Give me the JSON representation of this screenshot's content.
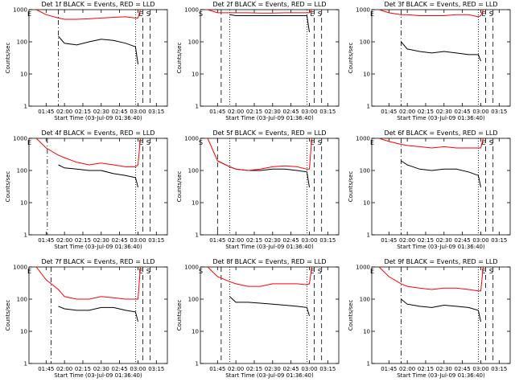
{
  "chart_data": [
    {
      "type": "line",
      "title": "Det 1f BLACK = Events, RED = LLD",
      "ylabel": "Counts/sec",
      "xlabel": "Start Time (03-Jul-09 01:36:40)",
      "log_scale": true,
      "x": [
        "01:37",
        "01:45",
        "01:55",
        "02:00",
        "02:10",
        "02:20",
        "02:30",
        "02:40",
        "02:50",
        "02:58",
        "03:00",
        "03:02"
      ],
      "series": [
        {
          "color": "#000000",
          "values": [
            null,
            null,
            150,
            90,
            80,
            100,
            120,
            110,
            90,
            70,
            20,
            null
          ]
        },
        {
          "color": "#ff0000",
          "values": [
            1000,
            700,
            550,
            500,
            500,
            520,
            550,
            580,
            600,
            550,
            550,
            1000
          ]
        }
      ],
      "xlim": [
        "01:31",
        "03:24"
      ],
      "xticks": [
        "01:45",
        "02:00",
        "02:15",
        "02:30",
        "02:45",
        "03:00",
        "03:15"
      ],
      "ylim": [
        1,
        1000
      ],
      "yticks": [
        1,
        10,
        100,
        1000
      ],
      "markers": [
        {
          "x": "01:33",
          "style": "none",
          "label": "E"
        },
        {
          "x": "01:55",
          "style": "dashdot"
        },
        {
          "x": "02:58",
          "style": "dotted"
        },
        {
          "x": "03:04",
          "style": "dashed",
          "label": "E"
        },
        {
          "x": "03:10",
          "style": "dashed",
          "label": "S"
        }
      ]
    },
    {
      "type": "line",
      "title": "Det 2f BLACK = Events, RED = LLD",
      "ylabel": "Counts/sec",
      "xlabel": "Start Time (03-Jul-09 01:36:40)",
      "log_scale": true,
      "x": [
        "01:37",
        "01:45",
        "01:55",
        "02:00",
        "02:10",
        "02:20",
        "02:30",
        "02:40",
        "02:50",
        "02:58",
        "03:00",
        "03:02"
      ],
      "series": [
        {
          "color": "#000000",
          "values": [
            null,
            null,
            700,
            650,
            650,
            650,
            650,
            650,
            650,
            650,
            200,
            null
          ]
        },
        {
          "color": "#ff0000",
          "values": [
            1000,
            800,
            800,
            800,
            800,
            780,
            780,
            800,
            800,
            800,
            800,
            1000
          ]
        }
      ],
      "xlim": [
        "01:31",
        "03:24"
      ],
      "xticks": [
        "01:45",
        "02:00",
        "02:15",
        "02:30",
        "02:45",
        "03:00",
        "03:15"
      ],
      "ylim": [
        1,
        1000
      ],
      "yticks": [
        1,
        10,
        100,
        1000
      ],
      "markers": [
        {
          "x": "01:33",
          "style": "none",
          "label": "S"
        },
        {
          "x": "01:48",
          "style": "dashed"
        },
        {
          "x": "01:55",
          "style": "dotted"
        },
        {
          "x": "02:58",
          "style": "dotted"
        },
        {
          "x": "03:04",
          "style": "dashed",
          "label": "E"
        },
        {
          "x": "03:10",
          "style": "dashed",
          "label": "S"
        }
      ]
    },
    {
      "type": "line",
      "title": "Det 3f BLACK = Events, RED = LLD",
      "ylabel": "Counts/sec",
      "xlabel": "Start Time (03-Jul-09 01:36:40)",
      "log_scale": true,
      "x": [
        "01:37",
        "01:45",
        "01:55",
        "02:00",
        "02:10",
        "02:20",
        "02:30",
        "02:40",
        "02:50",
        "02:58",
        "03:00",
        "03:02"
      ],
      "series": [
        {
          "color": "#000000",
          "values": [
            null,
            null,
            100,
            60,
            50,
            45,
            50,
            45,
            40,
            40,
            25,
            null
          ]
        },
        {
          "color": "#ff0000",
          "values": [
            1000,
            800,
            700,
            700,
            650,
            650,
            650,
            700,
            700,
            600,
            650,
            1000
          ]
        }
      ],
      "xlim": [
        "01:31",
        "03:24"
      ],
      "xticks": [
        "01:45",
        "02:00",
        "02:15",
        "02:30",
        "02:45",
        "03:00",
        "03:15"
      ],
      "ylim": [
        1,
        1000
      ],
      "yticks": [
        1,
        10,
        100,
        1000
      ],
      "markers": [
        {
          "x": "01:33",
          "style": "none",
          "label": "E"
        },
        {
          "x": "01:55",
          "style": "dashdot"
        },
        {
          "x": "02:58",
          "style": "dotted"
        },
        {
          "x": "03:04",
          "style": "dashed",
          "label": "E"
        },
        {
          "x": "03:10",
          "style": "dashed",
          "label": "S"
        }
      ]
    },
    {
      "type": "line",
      "title": "Det 4f BLACK = Events, RED = LLD",
      "ylabel": "Counts/sec",
      "xlabel": "Start Time (03-Jul-09 01:36:40)",
      "log_scale": true,
      "x": [
        "01:37",
        "01:45",
        "01:55",
        "02:00",
        "02:10",
        "02:20",
        "02:30",
        "02:40",
        "02:50",
        "02:58",
        "03:00",
        "03:02"
      ],
      "series": [
        {
          "color": "#000000",
          "values": [
            null,
            null,
            150,
            120,
            110,
            100,
            100,
            80,
            70,
            60,
            30,
            null
          ]
        },
        {
          "color": "#ff0000",
          "values": [
            1000,
            500,
            300,
            250,
            180,
            150,
            170,
            150,
            130,
            130,
            150,
            1000
          ]
        }
      ],
      "xlim": [
        "01:31",
        "03:24"
      ],
      "xticks": [
        "01:45",
        "02:00",
        "02:15",
        "02:30",
        "02:45",
        "03:00",
        "03:15"
      ],
      "ylim": [
        1,
        1000
      ],
      "yticks": [
        1,
        10,
        100,
        1000
      ],
      "markers": [
        {
          "x": "01:33",
          "style": "none",
          "label": "E"
        },
        {
          "x": "01:46",
          "style": "dashdot"
        },
        {
          "x": "02:58",
          "style": "dotted"
        },
        {
          "x": "03:04",
          "style": "dashed",
          "label": "E"
        },
        {
          "x": "03:10",
          "style": "dashed",
          "label": "S"
        }
      ]
    },
    {
      "type": "line",
      "title": "Det 5f BLACK = Events, RED = LLD",
      "ylabel": "Counts/sec",
      "xlabel": "Start Time (03-Jul-09 01:36:40)",
      "log_scale": true,
      "x": [
        "01:37",
        "01:45",
        "01:55",
        "02:00",
        "02:10",
        "02:20",
        "02:30",
        "02:40",
        "02:50",
        "02:58",
        "03:00",
        "03:02"
      ],
      "series": [
        {
          "color": "#000000",
          "values": [
            null,
            200,
            130,
            110,
            100,
            100,
            110,
            110,
            100,
            90,
            30,
            null
          ]
        },
        {
          "color": "#ff0000",
          "values": [
            1000,
            200,
            130,
            110,
            100,
            110,
            130,
            140,
            130,
            110,
            110,
            1000
          ]
        }
      ],
      "xlim": [
        "01:31",
        "03:24"
      ],
      "xticks": [
        "01:45",
        "02:00",
        "02:15",
        "02:30",
        "02:45",
        "03:00",
        "03:15"
      ],
      "ylim": [
        1,
        1000
      ],
      "yticks": [
        1,
        10,
        100,
        1000
      ],
      "markers": [
        {
          "x": "01:33",
          "style": "none",
          "label": "S"
        },
        {
          "x": "01:45",
          "style": "dashed"
        },
        {
          "x": "01:55",
          "style": "dotted"
        },
        {
          "x": "02:58",
          "style": "dotted"
        },
        {
          "x": "03:04",
          "style": "dashed",
          "label": "E"
        },
        {
          "x": "03:10",
          "style": "dashed",
          "label": "S"
        }
      ]
    },
    {
      "type": "line",
      "title": "Det 6f BLACK = Events, RED = LLD",
      "ylabel": "Counts/sec",
      "xlabel": "Start Time (03-Jul-09 01:36:40)",
      "log_scale": true,
      "x": [
        "01:37",
        "01:45",
        "01:55",
        "02:00",
        "02:10",
        "02:20",
        "02:30",
        "02:40",
        "02:50",
        "02:58",
        "03:00",
        "03:02"
      ],
      "series": [
        {
          "color": "#000000",
          "values": [
            null,
            null,
            200,
            150,
            110,
            100,
            110,
            110,
            90,
            70,
            30,
            null
          ]
        },
        {
          "color": "#ff0000",
          "values": [
            1000,
            800,
            650,
            600,
            550,
            500,
            550,
            500,
            500,
            500,
            500,
            1000
          ]
        }
      ],
      "xlim": [
        "01:31",
        "03:24"
      ],
      "xticks": [
        "01:45",
        "02:00",
        "02:15",
        "02:30",
        "02:45",
        "03:00",
        "03:15"
      ],
      "ylim": [
        1,
        1000
      ],
      "yticks": [
        1,
        10,
        100,
        1000
      ],
      "markers": [
        {
          "x": "01:33",
          "style": "none",
          "label": "E"
        },
        {
          "x": "01:55",
          "style": "dashdot"
        },
        {
          "x": "02:58",
          "style": "dotted"
        },
        {
          "x": "03:04",
          "style": "dashed",
          "label": "E"
        },
        {
          "x": "03:10",
          "style": "dashed",
          "label": "S"
        }
      ]
    },
    {
      "type": "line",
      "title": "Det 7f BLACK = Events, RED = LLD",
      "ylabel": "Counts/sec",
      "xlabel": "Start Time (03-Jul-09 01:36:40)",
      "log_scale": true,
      "x": [
        "01:37",
        "01:45",
        "01:55",
        "02:00",
        "02:10",
        "02:20",
        "02:30",
        "02:40",
        "02:50",
        "02:58",
        "03:00",
        "03:02"
      ],
      "series": [
        {
          "color": "#000000",
          "values": [
            null,
            null,
            60,
            50,
            45,
            45,
            55,
            55,
            45,
            40,
            20,
            null
          ]
        },
        {
          "color": "#ff0000",
          "values": [
            1000,
            400,
            200,
            120,
            100,
            100,
            120,
            110,
            100,
            100,
            100,
            1000
          ]
        }
      ],
      "xlim": [
        "01:31",
        "03:24"
      ],
      "xticks": [
        "01:45",
        "02:00",
        "02:15",
        "02:30",
        "02:45",
        "03:00",
        "03:15"
      ],
      "ylim": [
        1,
        1000
      ],
      "yticks": [
        1,
        10,
        100,
        1000
      ],
      "markers": [
        {
          "x": "01:33",
          "style": "none",
          "label": "E"
        },
        {
          "x": "01:49",
          "style": "dashdot"
        },
        {
          "x": "02:58",
          "style": "dotted"
        },
        {
          "x": "03:04",
          "style": "dashed",
          "label": "E"
        },
        {
          "x": "03:10",
          "style": "dashed",
          "label": "S"
        }
      ]
    },
    {
      "type": "line",
      "title": "Det 8f BLACK = Events, RED = LLD",
      "ylabel": "Counts/sec",
      "xlabel": "Start Time (03-Jul-09 01:36:40)",
      "log_scale": true,
      "x": [
        "01:37",
        "01:45",
        "01:55",
        "02:00",
        "02:10",
        "02:20",
        "02:30",
        "02:40",
        "02:50",
        "02:58",
        "03:00",
        "03:02"
      ],
      "series": [
        {
          "color": "#000000",
          "values": [
            null,
            null,
            120,
            80,
            80,
            75,
            70,
            65,
            60,
            55,
            30,
            null
          ]
        },
        {
          "color": "#ff0000",
          "values": [
            1000,
            500,
            350,
            300,
            250,
            250,
            300,
            300,
            300,
            280,
            300,
            1000
          ]
        }
      ],
      "xlim": [
        "01:31",
        "03:24"
      ],
      "xticks": [
        "01:45",
        "02:00",
        "02:15",
        "02:30",
        "02:45",
        "03:00",
        "03:15"
      ],
      "ylim": [
        1,
        1000
      ],
      "yticks": [
        1,
        10,
        100,
        1000
      ],
      "markers": [
        {
          "x": "01:33",
          "style": "none",
          "label": "S"
        },
        {
          "x": "01:48",
          "style": "dashed"
        },
        {
          "x": "01:55",
          "style": "dotted"
        },
        {
          "x": "02:58",
          "style": "dotted"
        },
        {
          "x": "03:04",
          "style": "dashed",
          "label": "E"
        },
        {
          "x": "03:10",
          "style": "dashed",
          "label": "S"
        }
      ]
    },
    {
      "type": "line",
      "title": "Det 9f BLACK = Events, RED = LLD",
      "ylabel": "Counts/sec",
      "xlabel": "Start Time (03-Jul-09 01:36:40)",
      "log_scale": true,
      "x": [
        "01:37",
        "01:45",
        "01:55",
        "02:00",
        "02:10",
        "02:20",
        "02:30",
        "02:40",
        "02:50",
        "02:58",
        "03:00",
        "03:02"
      ],
      "series": [
        {
          "color": "#000000",
          "values": [
            null,
            null,
            100,
            70,
            60,
            55,
            65,
            60,
            55,
            45,
            20,
            null
          ]
        },
        {
          "color": "#ff0000",
          "values": [
            1000,
            500,
            300,
            250,
            220,
            200,
            220,
            220,
            200,
            180,
            180,
            1000
          ]
        }
      ],
      "xlim": [
        "01:31",
        "03:24"
      ],
      "xticks": [
        "01:45",
        "02:00",
        "02:15",
        "02:30",
        "02:45",
        "03:00",
        "03:15"
      ],
      "ylim": [
        1,
        1000
      ],
      "yticks": [
        1,
        10,
        100,
        1000
      ],
      "markers": [
        {
          "x": "01:33",
          "style": "none",
          "label": "E"
        },
        {
          "x": "01:55",
          "style": "dashdot"
        },
        {
          "x": "02:58",
          "style": "dotted"
        },
        {
          "x": "03:04",
          "style": "dashed",
          "label": "E"
        },
        {
          "x": "03:10",
          "style": "dashed",
          "label": "S"
        }
      ]
    }
  ]
}
